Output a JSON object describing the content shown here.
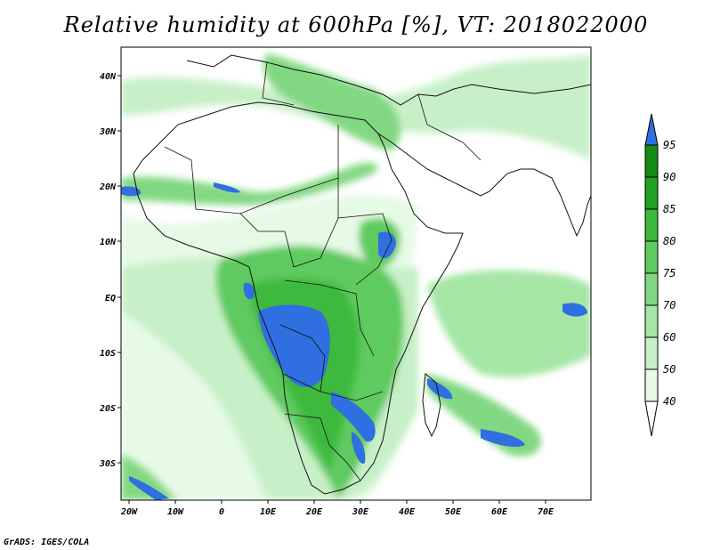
{
  "title": "Relative humidity at 600hPa [%], VT: 2018022000",
  "credit": "GrADS: IGES/COLA",
  "map": {
    "lon_labels": [
      "20W",
      "10W",
      "0",
      "10E",
      "20E",
      "30E",
      "40E",
      "50E",
      "60E",
      "70E"
    ],
    "lat_labels": [
      "40N",
      "30N",
      "20N",
      "10N",
      "EQ",
      "10S",
      "20S",
      "30S"
    ]
  },
  "colorbar": {
    "levels": [
      "40",
      "50",
      "60",
      "70",
      "75",
      "80",
      "85",
      "90",
      "95"
    ],
    "colors": [
      "#ffffff",
      "#e6fae6",
      "#c8f0c8",
      "#a5e6a5",
      "#82d882",
      "#5fca5f",
      "#3cb93c",
      "#22a022",
      "#148a14",
      "#2f6fe0"
    ]
  }
}
